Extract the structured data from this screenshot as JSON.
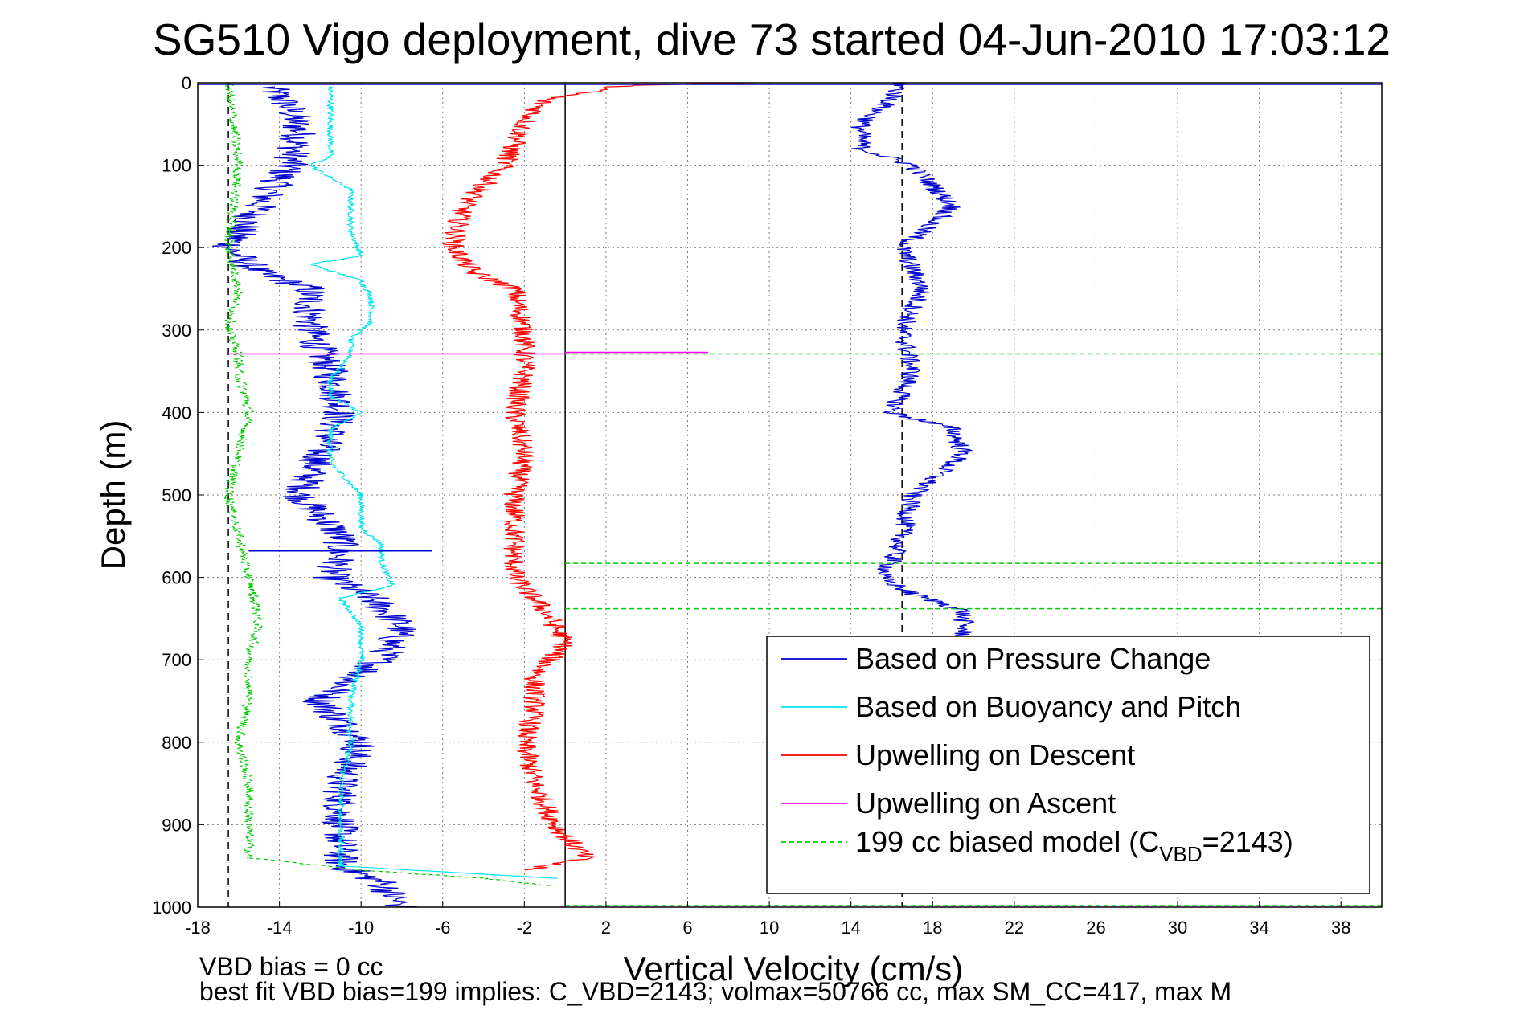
{
  "chart_data": {
    "type": "line",
    "title": "SG510 Vigo deployment, dive 73 started 04-Jun-2010 17:03:12",
    "xlabel": "Vertical Velocity (cm/s)",
    "ylabel": "Depth (m)",
    "xlim": [
      -18,
      40
    ],
    "ylim": [
      1000,
      0
    ],
    "y_reversed": true,
    "grid": true,
    "xticks": [
      "-18",
      "-14",
      "-10",
      "-6",
      "-2",
      "2",
      "6",
      "10",
      "14",
      "18",
      "22",
      "26",
      "30",
      "34",
      "38"
    ],
    "yticks": [
      "0",
      "100",
      "200",
      "300",
      "400",
      "500",
      "600",
      "700",
      "800",
      "900",
      "1000"
    ],
    "reference_lines": [
      {
        "x": -16.5,
        "style": "dashed",
        "color": "#000000"
      },
      {
        "x": 0,
        "style": "solid",
        "color": "#000000"
      },
      {
        "x": 16.5,
        "style": "dashed",
        "color": "#000000"
      }
    ],
    "legend_position": "bottom-right",
    "legend": [
      {
        "label": "Based on Pressure Change",
        "color": "#0000cc"
      },
      {
        "label": "Based on Buoyancy and Pitch",
        "color": "#00e5ee"
      },
      {
        "label": "Upwelling on Descent",
        "color": "#ff0000"
      },
      {
        "label": "Upwelling on Ascent",
        "color": "#ff00ff"
      },
      {
        "label_prefix": "199 cc biased model (C",
        "label_sub": "VBD",
        "label_suffix": "=2143)",
        "color": "#00cc00",
        "dashed": true
      }
    ],
    "series": [
      {
        "key": "descent_pressure",
        "color": "#0000cc",
        "noise": 0.9,
        "depth": [
          5,
          30,
          60,
          100,
          150,
          200,
          230,
          250,
          300,
          350,
          400,
          450,
          500,
          550,
          570,
          600,
          625,
          660,
          700,
          750,
          800,
          850,
          900,
          950,
          970,
          1000
        ],
        "value": [
          -14.5,
          -13.5,
          -13,
          -13.5,
          -15,
          -16.5,
          -15,
          -12.5,
          -12.5,
          -11.5,
          -11,
          -12,
          -13,
          -11,
          -11,
          -11.5,
          -9.5,
          -8,
          -9,
          -12,
          -10,
          -11,
          -11,
          -11,
          -9,
          -8
        ]
      },
      {
        "key": "descent_buoyancy",
        "color": "#00e5ee",
        "noise": 0.15,
        "depth": [
          5,
          40,
          90,
          100,
          130,
          180,
          210,
          220,
          240,
          260,
          290,
          310,
          330,
          360,
          380,
          400,
          420,
          460,
          500,
          540,
          560,
          580,
          610,
          625,
          660,
          700,
          750,
          800,
          850,
          900,
          950,
          965
        ],
        "value": [
          -11.5,
          -11.5,
          -11.5,
          -12.5,
          -10.5,
          -10.5,
          -10,
          -12.5,
          -10,
          -9.5,
          -9.5,
          -10.5,
          -10.5,
          -11.5,
          -11.5,
          -10,
          -11.5,
          -11.5,
          -10,
          -10,
          -9,
          -9,
          -8.5,
          -11,
          -10,
          -10,
          -10.5,
          -10.5,
          -11,
          -11,
          -11,
          -0.5
        ]
      },
      {
        "key": "upwelling_descent",
        "color": "#ff0000",
        "noise": 0.55,
        "depth": [
          0,
          3,
          20,
          50,
          100,
          150,
          200,
          230,
          250,
          300,
          350,
          400,
          450,
          500,
          550,
          600,
          640,
          680,
          720,
          760,
          800,
          850,
          900,
          940,
          955
        ],
        "value": [
          9,
          3,
          -1,
          -2,
          -3,
          -5,
          -5.5,
          -4.5,
          -2.5,
          -2,
          -2,
          -2.5,
          -2,
          -2.5,
          -2.5,
          -2.5,
          -1,
          0,
          -1.5,
          -1.5,
          -2,
          -1.5,
          -0.5,
          1,
          -2
        ]
      },
      {
        "key": "ascent_pressure",
        "color": "#0000cc",
        "noise": 0.5,
        "depth": [
          0,
          20,
          50,
          80,
          100,
          150,
          200,
          250,
          300,
          350,
          400,
          420,
          450,
          500,
          550,
          580,
          600,
          620,
          640,
          660,
          675
        ],
        "value": [
          16.5,
          16,
          14.5,
          14.5,
          17,
          19,
          16.5,
          17.5,
          16.5,
          17,
          16,
          19,
          19.5,
          17,
          16.5,
          16,
          15.5,
          17,
          19.5,
          19.5,
          19.5
        ]
      },
      {
        "key": "model_biased",
        "color": "#00cc00",
        "noise": 0.25,
        "dashed": true,
        "depth": [
          0,
          100,
          200,
          250,
          300,
          330,
          350,
          400,
          450,
          500,
          550,
          600,
          650,
          700,
          750,
          800,
          850,
          900,
          940,
          955,
          965,
          975
        ],
        "value": [
          -16.5,
          -16,
          -16.5,
          -16,
          -16.5,
          -16,
          -16,
          -15.5,
          -16,
          -16.5,
          -16,
          -15.5,
          -15,
          -15.5,
          -15.5,
          -16,
          -15.5,
          -15.5,
          -15.5,
          -10,
          -4,
          -0.5
        ]
      }
    ],
    "horizontal_lines": [
      {
        "depth": 2,
        "x": [
          -18,
          40
        ],
        "color": "#0000cc"
      },
      {
        "depth": 329,
        "x": [
          -16.5,
          0
        ],
        "color": "#ff00ff"
      },
      {
        "depth": 327,
        "x": [
          0,
          7
        ],
        "color": "#ff00ff"
      },
      {
        "depth": 329,
        "x": [
          0,
          40
        ],
        "color": "#00cc00",
        "dashed": true
      },
      {
        "depth": 583,
        "x": [
          0,
          40
        ],
        "color": "#00cc00",
        "dashed": true
      },
      {
        "depth": 638,
        "x": [
          0,
          40
        ],
        "color": "#00cc00",
        "dashed": true
      },
      {
        "depth": 998,
        "x": [
          0,
          40
        ],
        "color": "#00cc00",
        "dashed": true
      },
      {
        "depth": 568,
        "x": [
          -15.5,
          -6.5
        ],
        "color": "#0000cc"
      }
    ]
  },
  "notes": {
    "line1": "VBD bias = 0 cc",
    "line2": "best fit VBD bias=199 implies: C_VBD=2143; volmax=50766 cc, max SM_CC=417, max M"
  }
}
